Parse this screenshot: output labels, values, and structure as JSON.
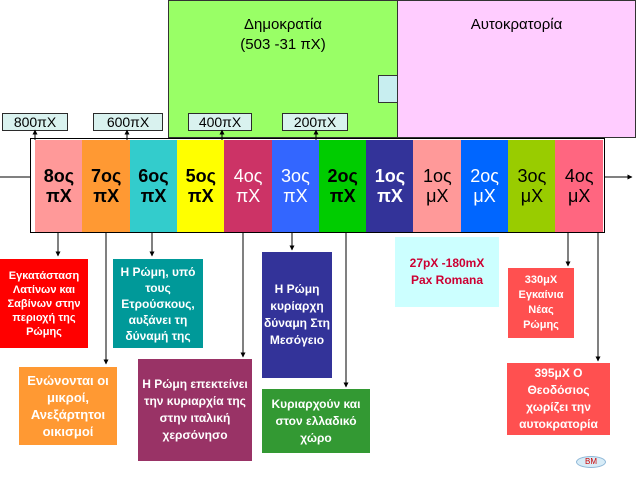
{
  "eras": {
    "republic": {
      "title": "Δημοκρατία",
      "dates": "(503 -31 πΧ)",
      "color": "#99ff66"
    },
    "empire": {
      "title": "Αυτοκρατορία",
      "color": "#ffccff"
    }
  },
  "year_labels": [
    "800πΧ",
    "600πΧ",
    "400πΧ",
    "200πΧ"
  ],
  "centuries": [
    {
      "num": "8ος",
      "era": "πΧ",
      "color": "#ff9999"
    },
    {
      "num": "7ος",
      "era": "πΧ",
      "color": "#ff9933"
    },
    {
      "num": "6ος",
      "era": "πΧ",
      "color": "#33cccc"
    },
    {
      "num": "5ος",
      "era": "πΧ",
      "color": "#ffff00"
    },
    {
      "num": "4ος",
      "era": "πΧ",
      "color": "#cc3366"
    },
    {
      "num": "3ος",
      "era": "πΧ",
      "color": "#3366ff"
    },
    {
      "num": "2ος",
      "era": "πΧ",
      "color": "#00cc00"
    },
    {
      "num": "1ος",
      "era": "πΧ",
      "color": "#333399"
    },
    {
      "num": "1ος",
      "era": "μΧ",
      "color": "#ff9999"
    },
    {
      "num": "2ος",
      "era": "μΧ",
      "color": "#0066ff"
    },
    {
      "num": "3ος",
      "era": "μΧ",
      "color": "#99cc00"
    },
    {
      "num": "4ος",
      "era": "μΧ",
      "color": "#ff6680"
    }
  ],
  "events": {
    "e1": {
      "text": "Εγκατάσταση Λατίνων και Σαβίνων στην περιοχή της Ρώμης",
      "bg": "#ff0000",
      "fg": "#ffffff"
    },
    "e2": {
      "text": "Ενώνονται οι μικροί, Ανεξάρτητοι οικισμοί",
      "bg": "#ff9933",
      "fg": "#ffffff"
    },
    "e3": {
      "text": "Η Ρώμη, υπό τους Ετρούσκους, αυξάνει τη δύναμή της",
      "bg": "#009999",
      "fg": "#ffffff"
    },
    "e4": {
      "text": "Η Ρώμη επεκτείνει την κυριαρχία της στην ιταλική χερσόνησο",
      "bg": "#993366",
      "fg": "#ffffff"
    },
    "e5": {
      "text": "Η Ρώμη κυρίαρχη δύναμη Στη Μεσόγειο",
      "bg": "#333399",
      "fg": "#ffffff"
    },
    "e6": {
      "text": "Κυριαρχούν και στον ελλαδικό χώρο",
      "bg": "#339933",
      "fg": "#ffffff"
    },
    "e7": {
      "text": "27pΧ -180mΧ Pax Romana",
      "bg": "#ccffff",
      "fg": "#cc0033"
    },
    "e8": {
      "text": "330μΧ Εγκαίνια Νέας Ρώμης",
      "bg": "#ff5050",
      "fg": "#ffffff"
    },
    "e9": {
      "text": "395μΧ Ο Θεοδόσιος χωρίζει την αυτοκρατορία",
      "bg": "#ff5050",
      "fg": "#ffffff"
    }
  },
  "badge": {
    "text": "BM"
  }
}
